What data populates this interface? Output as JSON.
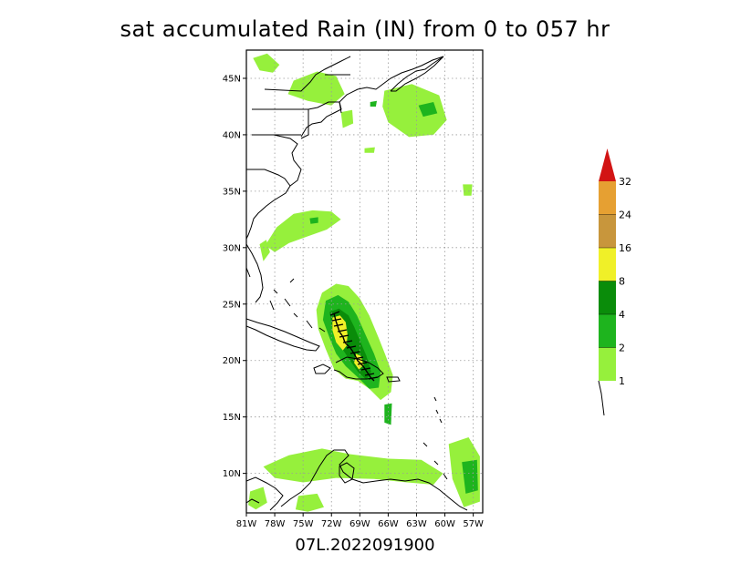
{
  "title": "sat accumulated Rain (IN) from 0 to 057 hr",
  "footer": "07L.2022091900",
  "map": {
    "lon_range": [
      -81,
      -56
    ],
    "lat_range": [
      6.5,
      47.5
    ],
    "lat_ticks": [
      {
        "value": 45,
        "label": "45N"
      },
      {
        "value": 40,
        "label": "40N"
      },
      {
        "value": 35,
        "label": "35N"
      },
      {
        "value": 30,
        "label": "30N"
      },
      {
        "value": 25,
        "label": "25N"
      },
      {
        "value": 20,
        "label": "20N"
      },
      {
        "value": 15,
        "label": "15N"
      },
      {
        "value": 10,
        "label": "10N"
      }
    ],
    "lon_ticks": [
      {
        "value": -81,
        "label": "81W"
      },
      {
        "value": -78,
        "label": "78W"
      },
      {
        "value": -75,
        "label": "75W"
      },
      {
        "value": -72,
        "label": "72W"
      },
      {
        "value": -69,
        "label": "69W"
      },
      {
        "value": -66,
        "label": "66W"
      },
      {
        "value": -63,
        "label": "63W"
      },
      {
        "value": -60,
        "label": "60W"
      },
      {
        "value": -57,
        "label": "57W"
      }
    ],
    "grid": "dotted",
    "rain_regions": [
      {
        "level": 1,
        "points": [
          [
            -73,
            26
          ],
          [
            -71.5,
            26.8
          ],
          [
            -70.2,
            26.6
          ],
          [
            -69,
            25.5
          ],
          [
            -68,
            24
          ],
          [
            -67,
            22
          ],
          [
            -66.3,
            20.5
          ],
          [
            -65.5,
            18.7
          ],
          [
            -65.7,
            17.2
          ],
          [
            -66.8,
            16.5
          ],
          [
            -68,
            17.5
          ],
          [
            -69.2,
            18.2
          ],
          [
            -70.5,
            18.4
          ],
          [
            -71.7,
            19.2
          ],
          [
            -72.6,
            21
          ],
          [
            -73.4,
            22.8
          ],
          [
            -73.6,
            24.5
          ]
        ]
      },
      {
        "level": 2,
        "points": [
          [
            -72.6,
            25.3
          ],
          [
            -71.3,
            25.8
          ],
          [
            -70.2,
            25.2
          ],
          [
            -69.3,
            24
          ],
          [
            -68.4,
            22.3
          ],
          [
            -67.5,
            20.6
          ],
          [
            -66.8,
            19
          ],
          [
            -67,
            17.6
          ],
          [
            -68,
            17.5
          ],
          [
            -69.2,
            18.5
          ],
          [
            -70.5,
            19.5
          ],
          [
            -71.5,
            20.6
          ],
          [
            -72.2,
            22
          ],
          [
            -72.9,
            23.6
          ]
        ]
      },
      {
        "level": 4,
        "points": [
          [
            -72.2,
            24.3
          ],
          [
            -71.2,
            24.6
          ],
          [
            -70.2,
            24
          ],
          [
            -69.6,
            23
          ],
          [
            -69,
            21.8
          ],
          [
            -68.3,
            20.4
          ],
          [
            -67.8,
            19
          ],
          [
            -68.3,
            18.3
          ],
          [
            -69.2,
            19
          ],
          [
            -70.2,
            20.2
          ],
          [
            -71.2,
            21.5
          ],
          [
            -71.9,
            22.8
          ]
        ]
      },
      {
        "level": 8,
        "points": [
          [
            -71.9,
            23.8
          ],
          [
            -71.1,
            24
          ],
          [
            -70.5,
            23.4
          ],
          [
            -70.3,
            22.3
          ],
          [
            -70.4,
            21.3
          ],
          [
            -70.8,
            20.9
          ],
          [
            -71.5,
            21.6
          ],
          [
            -71.9,
            22.7
          ]
        ]
      },
      {
        "level": 8,
        "points": [
          [
            -69.4,
            20.6
          ],
          [
            -68.9,
            20.4
          ],
          [
            -68.6,
            19.6
          ],
          [
            -69.1,
            19.2
          ],
          [
            -69.6,
            19.8
          ]
        ]
      },
      {
        "level": 1,
        "points": [
          [
            -77.8,
            31.8
          ],
          [
            -76,
            33
          ],
          [
            -74,
            33.3
          ],
          [
            -72,
            33.2
          ],
          [
            -71,
            32.5
          ],
          [
            -72.5,
            31.6
          ],
          [
            -74.5,
            31
          ],
          [
            -76.5,
            30.4
          ],
          [
            -78,
            29.6
          ],
          [
            -79,
            30.2
          ]
        ]
      },
      {
        "level": 1,
        "points": [
          [
            -79.6,
            30.3
          ],
          [
            -78.9,
            30.7
          ],
          [
            -78.5,
            29.6
          ],
          [
            -79.2,
            28.8
          ]
        ]
      },
      {
        "level": 1,
        "points": [
          [
            -80.3,
            46.8
          ],
          [
            -78.8,
            47.2
          ],
          [
            -77.5,
            46.2
          ],
          [
            -78.2,
            45.5
          ],
          [
            -79.6,
            45.7
          ]
        ]
      },
      {
        "level": 1,
        "points": [
          [
            -76,
            44.8
          ],
          [
            -73.5,
            45.6
          ],
          [
            -71.5,
            45.2
          ],
          [
            -70.6,
            43.6
          ],
          [
            -72,
            42.6
          ],
          [
            -74.5,
            43
          ],
          [
            -76.6,
            43.6
          ]
        ]
      },
      {
        "level": 1,
        "points": [
          [
            -71,
            42
          ],
          [
            -69.8,
            42.2
          ],
          [
            -69.7,
            41
          ],
          [
            -70.8,
            40.6
          ]
        ]
      },
      {
        "level": 1,
        "points": [
          [
            -66.4,
            43.9
          ],
          [
            -63.5,
            44.5
          ],
          [
            -60.6,
            43.5
          ],
          [
            -59.8,
            41.3
          ],
          [
            -61.2,
            40
          ],
          [
            -63.8,
            39.8
          ],
          [
            -66,
            41.1
          ],
          [
            -66.6,
            42.5
          ]
        ]
      },
      {
        "level": 1,
        "points": [
          [
            -79.2,
            10.6
          ],
          [
            -76.5,
            11.6
          ],
          [
            -73,
            12.2
          ],
          [
            -70,
            11.7
          ],
          [
            -66,
            11.3
          ],
          [
            -62.5,
            11.2
          ],
          [
            -60.2,
            10
          ],
          [
            -61.2,
            9
          ],
          [
            -64,
            9.2
          ],
          [
            -67.5,
            9.5
          ],
          [
            -71.5,
            9.6
          ],
          [
            -75,
            9.2
          ],
          [
            -78,
            9.6
          ]
        ]
      },
      {
        "level": 1,
        "points": [
          [
            -59.6,
            12.6
          ],
          [
            -57.5,
            13.2
          ],
          [
            -56.3,
            11.5
          ],
          [
            -56.3,
            7.5
          ],
          [
            -58,
            7
          ],
          [
            -59.2,
            9.5
          ]
        ]
      },
      {
        "level": 1,
        "points": [
          [
            -75.5,
            8
          ],
          [
            -73.5,
            8.2
          ],
          [
            -72.8,
            7
          ],
          [
            -74.5,
            6.6
          ],
          [
            -75.8,
            6.8
          ]
        ]
      },
      {
        "level": 1,
        "points": [
          [
            -80.6,
            8.4
          ],
          [
            -79.2,
            8.8
          ],
          [
            -78.8,
            7.4
          ],
          [
            -80,
            6.8
          ],
          [
            -80.8,
            7.2
          ]
        ]
      },
      {
        "level": 2,
        "points": [
          [
            -58.2,
            11
          ],
          [
            -56.6,
            11.2
          ],
          [
            -56.5,
            8.5
          ],
          [
            -57.8,
            8.2
          ]
        ]
      },
      {
        "level": 2,
        "points": [
          [
            -62.8,
            42.6
          ],
          [
            -61.2,
            42.9
          ],
          [
            -60.8,
            41.9
          ],
          [
            -62.3,
            41.6
          ]
        ]
      },
      {
        "level": 2,
        "points": [
          [
            -67.9,
            42.9
          ],
          [
            -67.2,
            43
          ],
          [
            -67.3,
            42.5
          ],
          [
            -67.9,
            42.5
          ]
        ]
      },
      {
        "level": 2,
        "points": [
          [
            -74.3,
            32.6
          ],
          [
            -73.4,
            32.7
          ],
          [
            -73.4,
            32.2
          ],
          [
            -74.2,
            32.1
          ]
        ]
      },
      {
        "level": 2,
        "points": [
          [
            -66.4,
            16.1
          ],
          [
            -65.6,
            16.2
          ],
          [
            -65.7,
            14.3
          ],
          [
            -66.4,
            14.5
          ]
        ]
      },
      {
        "level": 1,
        "points": [
          [
            -58.1,
            35.6
          ],
          [
            -57.1,
            35.6
          ],
          [
            -57.2,
            34.6
          ],
          [
            -58,
            34.6
          ]
        ]
      },
      {
        "level": 1,
        "points": [
          [
            -68.5,
            38.8
          ],
          [
            -67.4,
            38.9
          ],
          [
            -67.5,
            38.4
          ],
          [
            -68.5,
            38.4
          ]
        ]
      }
    ]
  },
  "legend": {
    "items": [
      {
        "label": "1",
        "color": "#96f03c"
      },
      {
        "label": "2",
        "color": "#1eb41e"
      },
      {
        "label": "4",
        "color": "#0a8c0a"
      },
      {
        "label": "8",
        "color": "#f0f028"
      },
      {
        "label": "16",
        "color": "#c8963c"
      },
      {
        "label": "24",
        "color": "#e6a032"
      },
      {
        "label": "32",
        "color": "#d21414"
      }
    ]
  }
}
